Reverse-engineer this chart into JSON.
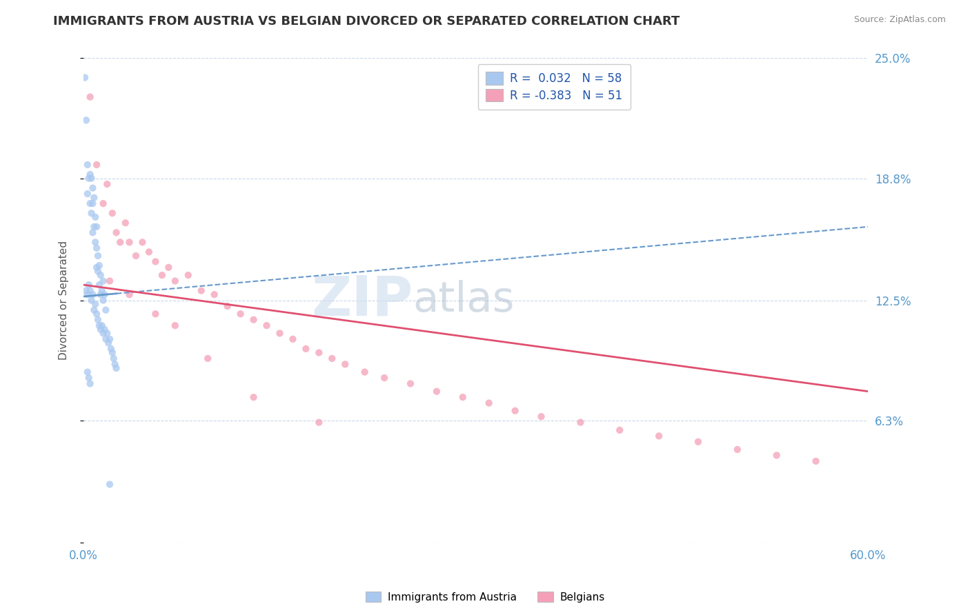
{
  "title": "IMMIGRANTS FROM AUSTRIA VS BELGIAN DIVORCED OR SEPARATED CORRELATION CHART",
  "source_text": "Source: ZipAtlas.com",
  "ylabel": "Divorced or Separated",
  "legend_label1": "Immigrants from Austria",
  "legend_label2": "Belgians",
  "r1": 0.032,
  "n1": 58,
  "r2": -0.383,
  "n2": 51,
  "color1": "#a8c8f0",
  "color2": "#f4a0b8",
  "trend_color1": "#6699cc",
  "trend_color2": "#e05070",
  "xmin": 0.0,
  "xmax": 0.6,
  "ymin": 0.0,
  "ymax": 0.25,
  "ytick_vals": [
    0.0,
    0.063,
    0.125,
    0.188,
    0.25
  ],
  "ytick_labels": [
    "",
    "6.3%",
    "12.5%",
    "18.8%",
    "25.0%"
  ],
  "xtick_vals": [
    0.0,
    0.1,
    0.2,
    0.3,
    0.4,
    0.5,
    0.6
  ],
  "xtick_labels": [
    "0.0%",
    "",
    "",
    "",
    "",
    "",
    "60.0%"
  ],
  "background_color": "#ffffff",
  "scatter1_x": [
    0.001,
    0.002,
    0.003,
    0.003,
    0.004,
    0.005,
    0.005,
    0.006,
    0.006,
    0.007,
    0.007,
    0.007,
    0.008,
    0.008,
    0.009,
    0.009,
    0.01,
    0.01,
    0.01,
    0.011,
    0.011,
    0.012,
    0.012,
    0.013,
    0.013,
    0.014,
    0.015,
    0.015,
    0.016,
    0.017,
    0.002,
    0.003,
    0.004,
    0.005,
    0.006,
    0.007,
    0.008,
    0.009,
    0.01,
    0.011,
    0.012,
    0.013,
    0.014,
    0.015,
    0.016,
    0.017,
    0.018,
    0.019,
    0.02,
    0.021,
    0.022,
    0.023,
    0.024,
    0.025,
    0.003,
    0.004,
    0.005,
    0.02
  ],
  "scatter1_y": [
    0.24,
    0.218,
    0.195,
    0.18,
    0.188,
    0.175,
    0.19,
    0.188,
    0.17,
    0.183,
    0.175,
    0.16,
    0.178,
    0.163,
    0.168,
    0.155,
    0.163,
    0.152,
    0.142,
    0.148,
    0.14,
    0.143,
    0.133,
    0.138,
    0.128,
    0.13,
    0.135,
    0.125,
    0.128,
    0.12,
    0.13,
    0.128,
    0.133,
    0.13,
    0.125,
    0.128,
    0.12,
    0.123,
    0.118,
    0.115,
    0.112,
    0.11,
    0.112,
    0.108,
    0.11,
    0.105,
    0.108,
    0.103,
    0.105,
    0.1,
    0.098,
    0.095,
    0.092,
    0.09,
    0.088,
    0.085,
    0.082,
    0.03
  ],
  "scatter2_x": [
    0.005,
    0.01,
    0.015,
    0.018,
    0.022,
    0.025,
    0.028,
    0.032,
    0.035,
    0.04,
    0.045,
    0.05,
    0.055,
    0.06,
    0.065,
    0.07,
    0.08,
    0.09,
    0.1,
    0.11,
    0.12,
    0.13,
    0.14,
    0.15,
    0.16,
    0.17,
    0.18,
    0.19,
    0.2,
    0.215,
    0.23,
    0.25,
    0.27,
    0.29,
    0.31,
    0.33,
    0.35,
    0.38,
    0.41,
    0.44,
    0.47,
    0.5,
    0.53,
    0.56,
    0.02,
    0.035,
    0.055,
    0.07,
    0.095,
    0.13,
    0.18
  ],
  "scatter2_y": [
    0.23,
    0.195,
    0.175,
    0.185,
    0.17,
    0.16,
    0.155,
    0.165,
    0.155,
    0.148,
    0.155,
    0.15,
    0.145,
    0.138,
    0.142,
    0.135,
    0.138,
    0.13,
    0.128,
    0.122,
    0.118,
    0.115,
    0.112,
    0.108,
    0.105,
    0.1,
    0.098,
    0.095,
    0.092,
    0.088,
    0.085,
    0.082,
    0.078,
    0.075,
    0.072,
    0.068,
    0.065,
    0.062,
    0.058,
    0.055,
    0.052,
    0.048,
    0.045,
    0.042,
    0.135,
    0.128,
    0.118,
    0.112,
    0.095,
    0.075,
    0.062
  ]
}
